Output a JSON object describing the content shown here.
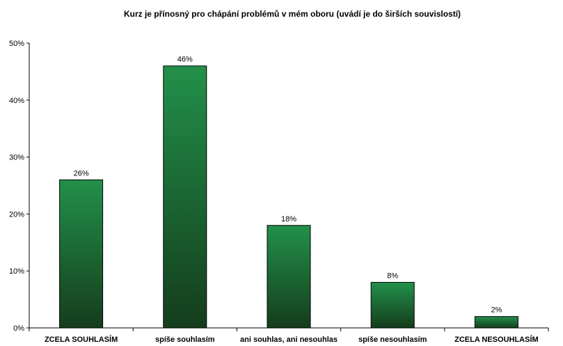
{
  "chart_data": {
    "type": "bar",
    "title": "Kurz je přínosný pro chápání problémů v mém oboru (uvádí je do širších souvislostí)",
    "xlabel": "",
    "ylabel": "",
    "categories": [
      "ZCELA SOUHLASÍM",
      "spíše souhlasím",
      "ani souhlas, ani nesouhlas",
      "spíše nesouhlasím",
      "ZCELA NESOUHLASÍM"
    ],
    "values": [
      26,
      46,
      18,
      8,
      2
    ],
    "value_labels": [
      "26%",
      "46%",
      "18%",
      "8%",
      "2%"
    ],
    "ylim": [
      0,
      50
    ],
    "yticks": [
      0,
      10,
      20,
      30,
      40,
      50
    ],
    "ytick_labels": [
      "0%",
      "10%",
      "20%",
      "30%",
      "40%",
      "50%"
    ],
    "grid": false,
    "legend": "none",
    "colors": {
      "bar_top": "#22904a",
      "bar_bottom": "#153d1c",
      "bar_edge": "#000000",
      "axis": "#000000"
    }
  }
}
